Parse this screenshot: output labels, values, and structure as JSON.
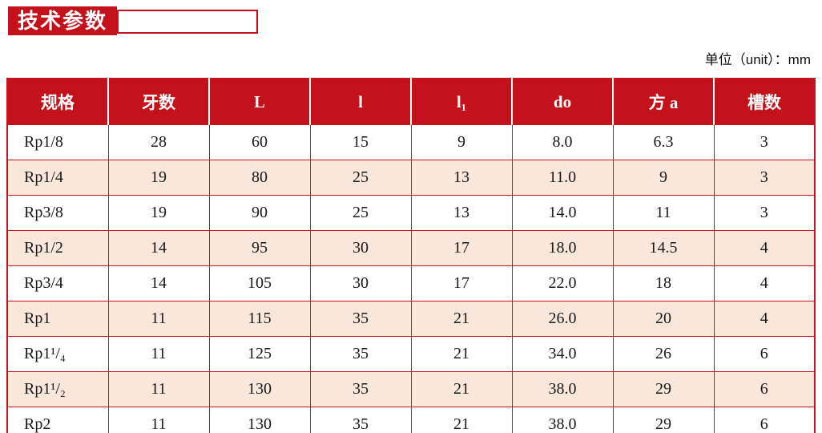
{
  "page": {
    "title": "技术参数",
    "unit_label": "单位（unit）：mm"
  },
  "table": {
    "columns": [
      "规格",
      "牙数",
      "L",
      "l",
      "l₁",
      "do",
      "方 a",
      "槽数"
    ],
    "rows": [
      [
        "Rp1/8",
        "28",
        "60",
        "15",
        "9",
        "8.0",
        "6.3",
        "3"
      ],
      [
        "Rp1/4",
        "19",
        "80",
        "25",
        "13",
        "11.0",
        "9",
        "3"
      ],
      [
        "Rp3/8",
        "19",
        "90",
        "25",
        "13",
        "14.0",
        "11",
        "3"
      ],
      [
        "Rp1/2",
        "14",
        "95",
        "30",
        "17",
        "18.0",
        "14.5",
        "4"
      ],
      [
        "Rp3/4",
        "14",
        "105",
        "30",
        "17",
        "22.0",
        "18",
        "4"
      ],
      [
        "Rp1",
        "11",
        "115",
        "35",
        "21",
        "26.0",
        "20",
        "4"
      ],
      [
        "Rp1¹/₄",
        "11",
        "125",
        "35",
        "21",
        "34.0",
        "26",
        "6"
      ],
      [
        "Rp1¹/₂",
        "11",
        "130",
        "35",
        "21",
        "38.0",
        "29",
        "6"
      ],
      [
        "Rp2",
        "11",
        "130",
        "35",
        "21",
        "38.0",
        "29",
        "6"
      ]
    ]
  },
  "colors": {
    "header_red": "#C4121C",
    "border_red": "#C31622",
    "row_pink": "#FAE7DC",
    "header_text": "#FFFFFF",
    "body_text": "#1A1A1A"
  }
}
